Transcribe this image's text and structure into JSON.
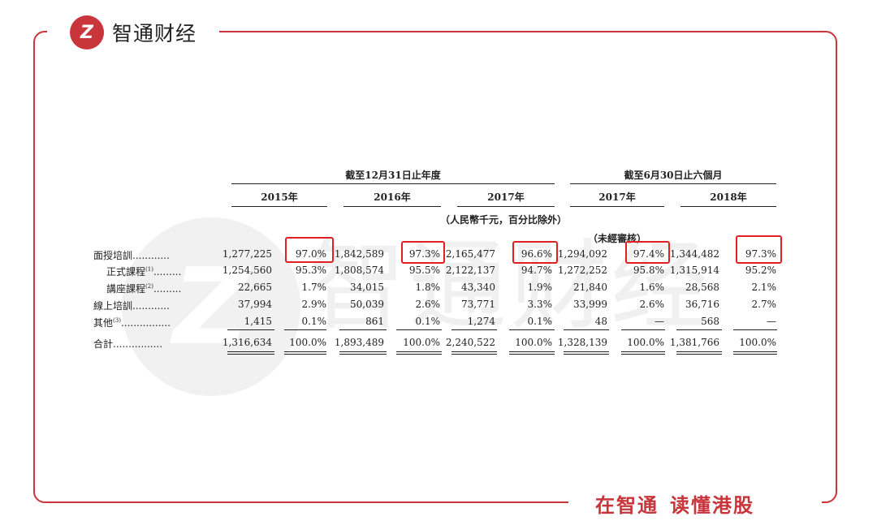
{
  "brand": {
    "logo_glyph": "Z",
    "name": "智通财经",
    "slogan_a": "在智通",
    "slogan_b": "读懂港股",
    "color": "#c8353a"
  },
  "watermark": {
    "glyph": "Z",
    "text": "智通财经"
  },
  "table": {
    "group_year": "截至12月31日止年度",
    "group_half": "截至6月30日止六個月",
    "years": [
      "2015年",
      "2016年",
      "2017年",
      "2017年",
      "2018年"
    ],
    "unit_note": "（人民幣千元，百分比除外）",
    "unaudited": "（未經審核）",
    "rows": [
      {
        "label": "面授培訓",
        "dots": "............",
        "sup": "",
        "cells": [
          "1,277,225",
          "97.0%",
          "1,842,589",
          "97.3%",
          "2,165,477",
          "96.6%",
          "1,294,092",
          "97.4%",
          "1,344,482",
          "97.3%"
        ]
      },
      {
        "label": "正式課程",
        "dots": ".........",
        "sup": "(1)",
        "cells": [
          "1,254,560",
          "95.3%",
          "1,808,574",
          "95.5%",
          "2,122,137",
          "94.7%",
          "1,272,252",
          "95.8%",
          "1,315,914",
          "95.2%"
        ]
      },
      {
        "label": "講座課程",
        "dots": ".........",
        "sup": "(2)",
        "cells": [
          "22,665",
          "1.7%",
          "34,015",
          "1.8%",
          "43,340",
          "1.9%",
          "21,840",
          "1.6%",
          "28,568",
          "2.1%"
        ]
      },
      {
        "label": "線上培訓",
        "dots": "............",
        "sup": "",
        "cells": [
          "37,994",
          "2.9%",
          "50,039",
          "2.6%",
          "73,771",
          "3.3%",
          "33,999",
          "2.6%",
          "36,716",
          "2.7%"
        ]
      },
      {
        "label": "其他",
        "dots": "................",
        "sup": "(3)",
        "cells": [
          "1,415",
          "0.1%",
          "861",
          "0.1%",
          "1,274",
          "0.1%",
          "48",
          "—",
          "568",
          "—"
        ]
      },
      {
        "label": "合計",
        "dots": "................",
        "sup": "",
        "cells": [
          "1,316,634",
          "100.0%",
          "1,893,489",
          "100.0%",
          "2,240,522",
          "100.0%",
          "1,328,139",
          "100.0%",
          "1,381,766",
          "100.0%"
        ]
      }
    ]
  }
}
